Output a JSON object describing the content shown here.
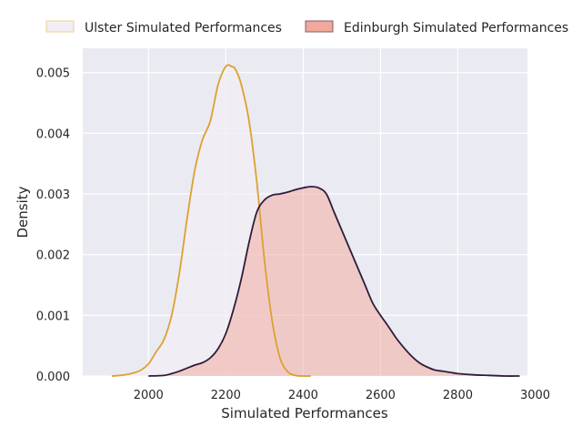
{
  "chart_data": {
    "type": "area",
    "title": "",
    "xlabel": "Simulated Performances",
    "ylabel": "Density",
    "xlim": [
      1830,
      2980
    ],
    "ylim": [
      0,
      0.0054
    ],
    "xticks": [
      2000,
      2200,
      2400,
      2600,
      2800,
      3000
    ],
    "yticks": [
      "0.000",
      "0.001",
      "0.002",
      "0.003",
      "0.004",
      "0.005"
    ],
    "grid": true,
    "legend_position": "top",
    "series": [
      {
        "name": "Ulster Simulated Performances",
        "line_color": "#dca12f",
        "fill_color": "#f3eef4",
        "x": [
          1905,
          1940,
          1975,
          2000,
          2020,
          2040,
          2060,
          2080,
          2100,
          2120,
          2140,
          2160,
          2180,
          2200,
          2215,
          2225,
          2240,
          2260,
          2280,
          2300,
          2320,
          2340,
          2360,
          2380,
          2400,
          2420
        ],
        "y": [
          0.0,
          2e-05,
          8e-05,
          0.0002,
          0.0004,
          0.0006,
          0.001,
          0.0017,
          0.0026,
          0.0034,
          0.0039,
          0.0042,
          0.0048,
          0.0051,
          0.0051,
          0.00505,
          0.0048,
          0.0042,
          0.0032,
          0.0019,
          0.0009,
          0.0003,
          7e-05,
          1e-05,
          0.0,
          0.0
        ]
      },
      {
        "name": "Edinburgh Simulated Performances",
        "line_color": "#2e1c3b",
        "fill_color": "#f2a89a",
        "x": [
          2000,
          2040,
          2060,
          2080,
          2100,
          2120,
          2140,
          2160,
          2180,
          2200,
          2220,
          2240,
          2260,
          2280,
          2300,
          2320,
          2340,
          2360,
          2380,
          2400,
          2420,
          2440,
          2460,
          2480,
          2500,
          2520,
          2540,
          2560,
          2580,
          2600,
          2620,
          2640,
          2660,
          2680,
          2700,
          2720,
          2740,
          2760,
          2780,
          2800,
          2840,
          2880,
          2920,
          2960
        ],
        "y": [
          0.0,
          1e-05,
          4e-05,
          8e-05,
          0.00013,
          0.00018,
          0.00022,
          0.0003,
          0.00045,
          0.0007,
          0.0011,
          0.0016,
          0.0022,
          0.0027,
          0.0029,
          0.00298,
          0.003,
          0.00303,
          0.00307,
          0.0031,
          0.00312,
          0.0031,
          0.003,
          0.0027,
          0.0024,
          0.0021,
          0.0018,
          0.0015,
          0.0012,
          0.001,
          0.00082,
          0.00063,
          0.00047,
          0.00033,
          0.00022,
          0.00015,
          0.0001,
          8e-05,
          6e-05,
          4e-05,
          2e-05,
          1e-05,
          0.0,
          0.0
        ]
      }
    ]
  }
}
